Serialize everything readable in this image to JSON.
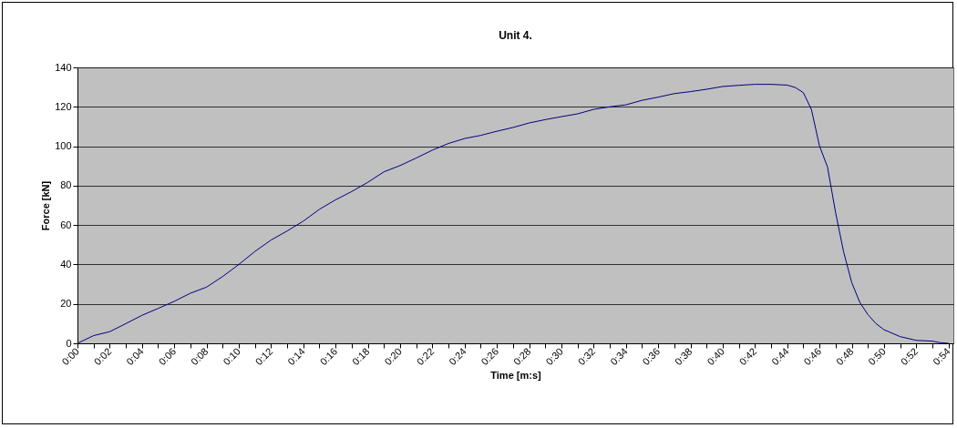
{
  "chart_data": {
    "type": "line",
    "title": "Unit 4.",
    "xlabel": "Time  [m:s]",
    "ylabel": "Force [kN]",
    "x": [
      0,
      1,
      2,
      3,
      4,
      5,
      6,
      7,
      8,
      9,
      10,
      11,
      12,
      13,
      14,
      15,
      16,
      17,
      18,
      19,
      20,
      21,
      22,
      23,
      24,
      25,
      26,
      27,
      28,
      29,
      30,
      31,
      32,
      33,
      34,
      35,
      36,
      37,
      38,
      39,
      40,
      41,
      42,
      43,
      44,
      44.5,
      45,
      45.5,
      46,
      46.5,
      47,
      47.5,
      48,
      48.5,
      49,
      49.5,
      50,
      51,
      52,
      53,
      53.5,
      54
    ],
    "series": [
      {
        "color": "#000080",
        "values": [
          0,
          3.9,
          5.9,
          10,
          14.2,
          17.7,
          21.3,
          25.4,
          28.5,
          33.9,
          40,
          46.6,
          52.4,
          57,
          62,
          68,
          72.8,
          77,
          81.7,
          87,
          90.2,
          94,
          98,
          101.4,
          103.9,
          105.5,
          107.6,
          109.5,
          111.8,
          113.5,
          115,
          116.4,
          118.7,
          120,
          121,
          123.3,
          124.9,
          126.7,
          127.7,
          128.9,
          130.3,
          130.9,
          131.4,
          131.4,
          131,
          129.8,
          127.2,
          118.7,
          100.2,
          89.4,
          66.3,
          46.3,
          30.8,
          20.8,
          14.6,
          10,
          6.9,
          3.4,
          1.5,
          1.1,
          0.3,
          0
        ]
      }
    ],
    "xlim": [
      0,
      54.3
    ],
    "xticks": [
      {
        "value": 0,
        "label": "0:00"
      },
      {
        "value": 1,
        "label": null
      },
      {
        "value": 2,
        "label": "0:02"
      },
      {
        "value": 3,
        "label": null
      },
      {
        "value": 4,
        "label": "0:04"
      },
      {
        "value": 5,
        "label": null
      },
      {
        "value": 6,
        "label": "0:06"
      },
      {
        "value": 7,
        "label": null
      },
      {
        "value": 8,
        "label": "0:08"
      },
      {
        "value": 9,
        "label": null
      },
      {
        "value": 10,
        "label": "0:10"
      },
      {
        "value": 11,
        "label": null
      },
      {
        "value": 12,
        "label": "0:12"
      },
      {
        "value": 13,
        "label": null
      },
      {
        "value": 14,
        "label": "0:14"
      },
      {
        "value": 15,
        "label": null
      },
      {
        "value": 16,
        "label": "0:16"
      },
      {
        "value": 17,
        "label": null
      },
      {
        "value": 18,
        "label": "0:18"
      },
      {
        "value": 19,
        "label": null
      },
      {
        "value": 20,
        "label": "0:20"
      },
      {
        "value": 21,
        "label": null
      },
      {
        "value": 22,
        "label": "0:22"
      },
      {
        "value": 23,
        "label": null
      },
      {
        "value": 24,
        "label": "0:24"
      },
      {
        "value": 25,
        "label": null
      },
      {
        "value": 26,
        "label": "0:26"
      },
      {
        "value": 27,
        "label": null
      },
      {
        "value": 28,
        "label": "0:28"
      },
      {
        "value": 29,
        "label": null
      },
      {
        "value": 30,
        "label": "0:30"
      },
      {
        "value": 31,
        "label": null
      },
      {
        "value": 32,
        "label": "0:32"
      },
      {
        "value": 33,
        "label": null
      },
      {
        "value": 34,
        "label": "0:34"
      },
      {
        "value": 35,
        "label": null
      },
      {
        "value": 36,
        "label": "0:36"
      },
      {
        "value": 37,
        "label": null
      },
      {
        "value": 38,
        "label": "0:38"
      },
      {
        "value": 39,
        "label": null
      },
      {
        "value": 40,
        "label": "0:40"
      },
      {
        "value": 41,
        "label": null
      },
      {
        "value": 42,
        "label": "0:42"
      },
      {
        "value": 43,
        "label": null
      },
      {
        "value": 44,
        "label": "0:44"
      },
      {
        "value": 45,
        "label": null
      },
      {
        "value": 46,
        "label": "0:46"
      },
      {
        "value": 47,
        "label": null
      },
      {
        "value": 48,
        "label": "0:48"
      },
      {
        "value": 49,
        "label": null
      },
      {
        "value": 50,
        "label": "0:50"
      },
      {
        "value": 51,
        "label": null
      },
      {
        "value": 52,
        "label": "0:52"
      },
      {
        "value": 53,
        "label": null
      },
      {
        "value": 54,
        "label": "0:54"
      }
    ],
    "ylim": [
      0,
      140
    ],
    "yticks": [
      0,
      20,
      40,
      60,
      80,
      100,
      120,
      140
    ],
    "grid": "y"
  }
}
